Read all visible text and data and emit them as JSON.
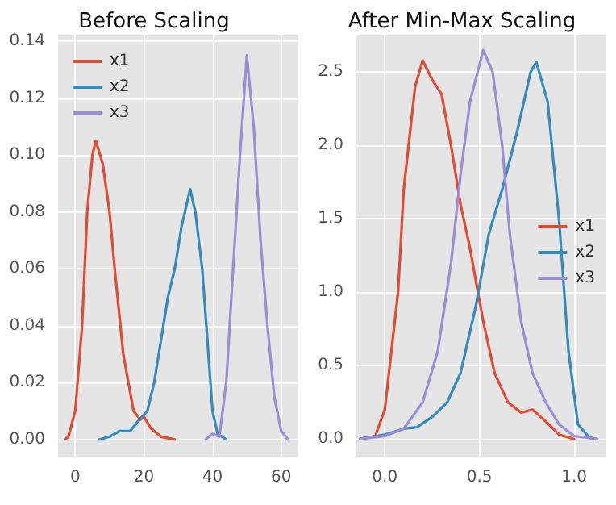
{
  "chart_data": [
    {
      "type": "line",
      "title": "Before Scaling",
      "xlim": [
        -5,
        65
      ],
      "xticks": [
        0,
        20,
        40,
        60
      ],
      "ylim": [
        -0.006,
        0.142
      ],
      "yticks": [
        {
          "value": 0,
          "label": "0.00"
        },
        {
          "value": 0.02,
          "label": "0.02"
        },
        {
          "value": 0.04,
          "label": "0.04"
        },
        {
          "value": 0.06,
          "label": "0.06"
        },
        {
          "value": 0.08,
          "label": "0.08"
        },
        {
          "value": 0.1,
          "label": "0.10"
        },
        {
          "value": 0.12,
          "label": "0.12"
        },
        {
          "value": 0.14,
          "label": "0.14"
        }
      ],
      "grid": true,
      "legend": "top left",
      "marker": "none",
      "line_style": "solid",
      "series": [
        {
          "name": "x1",
          "color": "#e24a33",
          "x": [
            -3,
            -2,
            0,
            2,
            3.5,
            5,
            6,
            8,
            10,
            11.5,
            14,
            17,
            19,
            20,
            22,
            25,
            29
          ],
          "values": [
            0,
            0.001,
            0.01,
            0.04,
            0.08,
            0.1,
            0.105,
            0.097,
            0.08,
            0.06,
            0.03,
            0.01,
            0.007,
            0.008,
            0.004,
            0.001,
            0
          ]
        },
        {
          "name": "x2",
          "color": "#348abd",
          "x": [
            7,
            10,
            13,
            16,
            18,
            21,
            23,
            25,
            27,
            29,
            31,
            33.5,
            35,
            37,
            38.5,
            40,
            41.5,
            44
          ],
          "values": [
            0,
            0.001,
            0.003,
            0.003,
            0.006,
            0.01,
            0.02,
            0.035,
            0.05,
            0.06,
            0.075,
            0.088,
            0.08,
            0.06,
            0.035,
            0.01,
            0.002,
            0
          ]
        },
        {
          "name": "x3",
          "color": "#988ed5",
          "x": [
            38,
            40,
            42,
            44,
            46,
            48,
            50,
            52,
            54,
            56,
            58,
            60,
            62
          ],
          "values": [
            0,
            0.002,
            0.001,
            0.02,
            0.06,
            0.1,
            0.135,
            0.11,
            0.07,
            0.04,
            0.015,
            0.003,
            0
          ]
        }
      ]
    },
    {
      "type": "line",
      "title": "After Min-Max Scaling",
      "xlim": [
        -0.15,
        1.17
      ],
      "xticks": [
        {
          "value": 0,
          "label": "0.0"
        },
        {
          "value": 0.5,
          "label": "0.5"
        },
        {
          "value": 1,
          "label": "1.0"
        }
      ],
      "ylim": [
        -0.12,
        2.75
      ],
      "yticks": [
        {
          "value": 0,
          "label": "0.0"
        },
        {
          "value": 0.5,
          "label": "0.5"
        },
        {
          "value": 1,
          "label": "1.0"
        },
        {
          "value": 1.5,
          "label": "1.5"
        },
        {
          "value": 2,
          "label": "2.0"
        },
        {
          "value": 2.5,
          "label": "2.5"
        }
      ],
      "grid": true,
      "legend": "right",
      "marker": "none",
      "line_style": "solid",
      "series": [
        {
          "name": "x1",
          "color": "#e24a33",
          "x": [
            -0.13,
            -0.05,
            0,
            0.07,
            0.1,
            0.16,
            0.2,
            0.25,
            0.3,
            0.35,
            0.4,
            0.45,
            0.52,
            0.58,
            0.65,
            0.72,
            0.78,
            0.85,
            0.92,
            1
          ],
          "values": [
            0,
            0.02,
            0.2,
            1,
            1.7,
            2.4,
            2.58,
            2.45,
            2.35,
            2,
            1.6,
            1.3,
            0.8,
            0.45,
            0.25,
            0.18,
            0.2,
            0.12,
            0.03,
            0
          ]
        },
        {
          "name": "x2",
          "color": "#348abd",
          "x": [
            -0.13,
            0,
            0.1,
            0.17,
            0.25,
            0.33,
            0.4,
            0.48,
            0.55,
            0.62,
            0.7,
            0.77,
            0.8,
            0.86,
            0.92,
            0.97,
            1.02,
            1.08,
            1.12
          ],
          "values": [
            0,
            0.03,
            0.07,
            0.08,
            0.15,
            0.25,
            0.45,
            0.9,
            1.4,
            1.7,
            2.1,
            2.5,
            2.57,
            2.3,
            1.5,
            0.6,
            0.1,
            0.01,
            0
          ]
        },
        {
          "name": "x3",
          "color": "#988ed5",
          "x": [
            -0.13,
            0,
            0.1,
            0.2,
            0.28,
            0.35,
            0.4,
            0.45,
            0.52,
            0.57,
            0.62,
            0.66,
            0.72,
            0.78,
            0.85,
            0.92,
            1,
            1.12
          ],
          "values": [
            0,
            0.02,
            0.07,
            0.25,
            0.6,
            1.2,
            1.8,
            2.3,
            2.65,
            2.5,
            2,
            1.4,
            0.8,
            0.45,
            0.25,
            0.1,
            0.02,
            0
          ]
        }
      ]
    }
  ]
}
